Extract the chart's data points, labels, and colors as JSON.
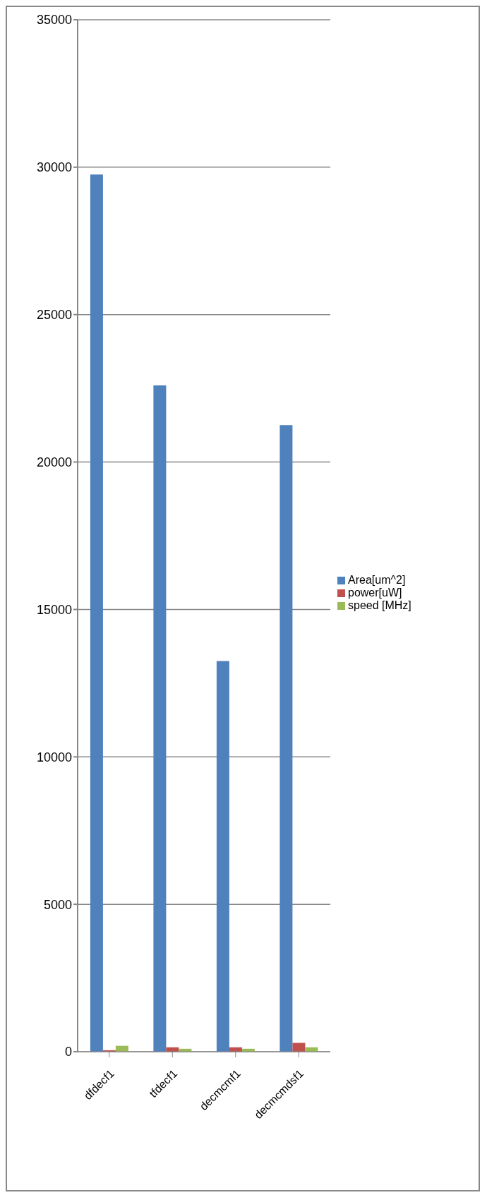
{
  "chart_data": {
    "type": "bar",
    "categories": [
      "dfdecf1",
      "tfdecf1",
      "decmcmf1",
      "decmcmdsf1"
    ],
    "series": [
      {
        "name": "Area[um^2]",
        "color": "#4f81bd",
        "values": [
          29750,
          22600,
          13250,
          21250
        ]
      },
      {
        "name": "power[uW]",
        "color": "#c0504d",
        "values": [
          50,
          150,
          150,
          300
        ]
      },
      {
        "name": "speed [MHz]",
        "color": "#9bbb59",
        "values": [
          200,
          100,
          100,
          150
        ]
      }
    ],
    "ylim": [
      0,
      35000
    ],
    "yticks": [
      0,
      5000,
      10000,
      15000,
      20000,
      25000,
      30000,
      35000
    ],
    "grid": "y",
    "legend": "right"
  }
}
